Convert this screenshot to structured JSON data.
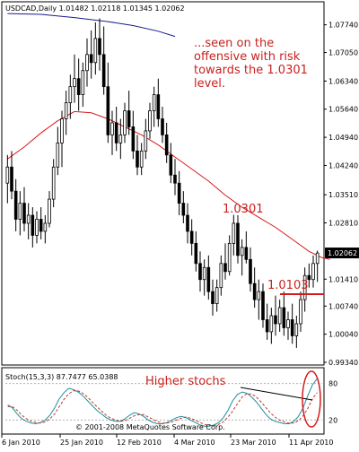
{
  "chart_data": [
    {
      "type": "candlestick",
      "header": "USDCAD,Daily  1.01482 1.02118 1.01345 1.02062",
      "price_axis_labels": [
        "1.07740",
        "1.07050",
        "1.06340",
        "1.05640",
        "1.04940",
        "1.04240",
        "1.03510",
        "1.02810",
        "1.02062",
        "1.01410",
        "1.00740",
        "1.00040",
        "0.99340"
      ],
      "last_price": "1.02062",
      "ylim": [
        0.9934,
        1.08
      ],
      "annotations": {
        "offensive_note": [
          "...seen on the",
          "offensive with risk",
          "towards the 1.0301",
          "level."
        ],
        "level_high": "1.0301",
        "level_low": "1.0103",
        "level_low_value": 1.0103
      },
      "moving_average": [
        [
          0,
          1.044
        ],
        [
          4,
          1.047
        ],
        [
          8,
          1.0505
        ],
        [
          12,
          1.0535
        ],
        [
          16,
          1.0558
        ],
        [
          20,
          1.0555
        ],
        [
          24,
          1.054
        ],
        [
          28,
          1.052
        ],
        [
          32,
          1.05
        ],
        [
          36,
          1.0475
        ],
        [
          40,
          1.0445
        ],
        [
          44,
          1.0415
        ],
        [
          48,
          1.0385
        ],
        [
          52,
          1.035
        ],
        [
          56,
          1.032
        ],
        [
          60,
          1.0295
        ],
        [
          64,
          1.027
        ],
        [
          68,
          1.024
        ],
        [
          72,
          1.021
        ],
        [
          75,
          1.0195
        ],
        [
          77,
          1.019
        ]
      ],
      "upper_moving_average": [
        [
          0,
          1.0802
        ],
        [
          8,
          1.08
        ],
        [
          16,
          1.0792
        ],
        [
          24,
          1.0782
        ],
        [
          30,
          1.0772
        ],
        [
          36,
          1.0758
        ],
        [
          40,
          1.0745
        ]
      ],
      "candles": [
        [
          1.038,
          1.045,
          1.033,
          1.042
        ],
        [
          1.042,
          1.046,
          1.034,
          1.036
        ],
        [
          1.036,
          1.039,
          1.026,
          1.029
        ],
        [
          1.029,
          1.036,
          1.025,
          1.033
        ],
        [
          1.033,
          1.037,
          1.026,
          1.028
        ],
        [
          1.028,
          1.033,
          1.024,
          1.03
        ],
        [
          1.03,
          1.032,
          1.022,
          1.025
        ],
        [
          1.025,
          1.031,
          1.023,
          1.029
        ],
        [
          1.029,
          1.032,
          1.024,
          1.026
        ],
        [
          1.026,
          1.03,
          1.023,
          1.028
        ],
        [
          1.028,
          1.036,
          1.027,
          1.034
        ],
        [
          1.034,
          1.044,
          1.032,
          1.042
        ],
        [
          1.042,
          1.052,
          1.04,
          1.048
        ],
        [
          1.048,
          1.056,
          1.042,
          1.054
        ],
        [
          1.054,
          1.061,
          1.05,
          1.058
        ],
        [
          1.058,
          1.065,
          1.054,
          1.062
        ],
        [
          1.062,
          1.07,
          1.058,
          1.064
        ],
        [
          1.064,
          1.069,
          1.056,
          1.06
        ],
        [
          1.06,
          1.068,
          1.057,
          1.066
        ],
        [
          1.066,
          1.074,
          1.062,
          1.07
        ],
        [
          1.07,
          1.076,
          1.064,
          1.068
        ],
        [
          1.068,
          1.078,
          1.065,
          1.074
        ],
        [
          1.074,
          1.079,
          1.066,
          1.07
        ],
        [
          1.07,
          1.077,
          1.06,
          1.062
        ],
        [
          1.062,
          1.068,
          1.048,
          1.05
        ],
        [
          1.05,
          1.056,
          1.045,
          1.053
        ],
        [
          1.053,
          1.057,
          1.046,
          1.048
        ],
        [
          1.048,
          1.054,
          1.044,
          1.05
        ],
        [
          1.05,
          1.058,
          1.048,
          1.056
        ],
        [
          1.056,
          1.061,
          1.05,
          1.052
        ],
        [
          1.052,
          1.056,
          1.044,
          1.046
        ],
        [
          1.046,
          1.05,
          1.04,
          1.042
        ],
        [
          1.042,
          1.048,
          1.04,
          1.046
        ],
        [
          1.046,
          1.054,
          1.044,
          1.051
        ],
        [
          1.051,
          1.058,
          1.049,
          1.056
        ],
        [
          1.056,
          1.062,
          1.052,
          1.06
        ],
        [
          1.06,
          1.064,
          1.052,
          1.054
        ],
        [
          1.054,
          1.057,
          1.048,
          1.05
        ],
        [
          1.05,
          1.053,
          1.043,
          1.045
        ],
        [
          1.045,
          1.048,
          1.038,
          1.04
        ],
        [
          1.04,
          1.044,
          1.035,
          1.038
        ],
        [
          1.038,
          1.041,
          1.03,
          1.033
        ],
        [
          1.033,
          1.036,
          1.028,
          1.03
        ],
        [
          1.03,
          1.033,
          1.023,
          1.026
        ],
        [
          1.026,
          1.029,
          1.02,
          1.023
        ],
        [
          1.023,
          1.026,
          1.016,
          1.018
        ],
        [
          1.018,
          1.021,
          1.011,
          1.014
        ],
        [
          1.014,
          1.019,
          1.01,
          1.017
        ],
        [
          1.017,
          1.02,
          1.009,
          1.011
        ],
        [
          1.011,
          1.014,
          1.005,
          1.008
        ],
        [
          1.008,
          1.014,
          1.006,
          1.012
        ],
        [
          1.012,
          1.02,
          1.01,
          1.018
        ],
        [
          1.018,
          1.023,
          1.014,
          1.016
        ],
        [
          1.016,
          1.025,
          1.015,
          1.023
        ],
        [
          1.023,
          1.0301,
          1.02,
          1.028
        ],
        [
          1.028,
          1.03,
          1.018,
          1.02
        ],
        [
          1.02,
          1.024,
          1.015,
          1.022
        ],
        [
          1.022,
          1.026,
          1.018,
          1.019
        ],
        [
          1.019,
          1.022,
          1.011,
          1.013
        ],
        [
          1.013,
          1.017,
          1.007,
          1.009
        ],
        [
          1.009,
          1.014,
          1.004,
          1.011
        ],
        [
          1.011,
          1.013,
          1.002,
          1.004
        ],
        [
          1.004,
          1.008,
          0.999,
          1.001
        ],
        [
          1.001,
          1.007,
          0.998,
          1.005
        ],
        [
          1.005,
          1.01,
          1.0,
          1.003
        ],
        [
          1.003,
          1.009,
          1.001,
          1.007
        ],
        [
          1.007,
          1.011,
          1.0,
          1.002
        ],
        [
          1.002,
          1.006,
          0.999,
          1.004
        ],
        [
          1.004,
          1.008,
          0.998,
          1.0
        ],
        [
          1.0,
          1.005,
          0.997,
          1.003
        ],
        [
          1.003,
          1.011,
          1.001,
          1.009
        ],
        [
          1.009,
          1.017,
          1.006,
          1.015
        ],
        [
          1.015,
          1.018,
          1.012,
          1.014
        ],
        [
          1.014,
          1.02,
          1.012,
          1.018
        ],
        [
          1.018,
          1.0212,
          1.0134,
          1.0206
        ]
      ],
      "date_labels": [
        "6 Jan 2010",
        "25 Jan 2010",
        "12 Feb 2010",
        "4 Mar 2010",
        "23 Mar 2010",
        "11 Apr 2010"
      ],
      "colors": {
        "ma": "#d61a1a",
        "upper_ma": "#1a1a8a",
        "bars": "#000000",
        "level": "#d61a1a",
        "annotation": "#c8211e"
      }
    },
    {
      "type": "line",
      "header": "Stoch(15,3,3) 87.7477 65.0388",
      "ylim": [
        0,
        100
      ],
      "levels": [
        20,
        80
      ],
      "level_labels": [
        "80",
        "20"
      ],
      "annotation": "Higher stochs",
      "copyright": "© 2001-2008 MetaQuotes Software Corp.",
      "series": [
        {
          "values": [
            45,
            40,
            30,
            22,
            18,
            15,
            14,
            16,
            20,
            28,
            40,
            55,
            65,
            72,
            70,
            66,
            60,
            52,
            44,
            36,
            30,
            24,
            20,
            18,
            18,
            22,
            28,
            32,
            30,
            26,
            20,
            16,
            14,
            14,
            16,
            20,
            24,
            26,
            24,
            20,
            16,
            12,
            10,
            10,
            12,
            16,
            24,
            36,
            52,
            62,
            66,
            64,
            58,
            50,
            40,
            30,
            22,
            18,
            16,
            14,
            14,
            18,
            26,
            40,
            60,
            78,
            88
          ],
          "color": "#1a8fa0"
        },
        {
          "values": [
            42,
            42,
            36,
            28,
            22,
            18,
            16,
            15,
            17,
            22,
            30,
            42,
            54,
            63,
            68,
            68,
            64,
            58,
            50,
            42,
            35,
            28,
            23,
            20,
            18,
            19,
            23,
            27,
            29,
            29,
            25,
            21,
            17,
            15,
            15,
            17,
            20,
            23,
            25,
            23,
            20,
            16,
            13,
            11,
            11,
            13,
            17,
            25,
            35,
            47,
            58,
            63,
            63,
            58,
            50,
            41,
            32,
            25,
            20,
            17,
            15,
            15,
            19,
            27,
            39,
            55,
            65
          ],
          "color": "#c0392b"
        }
      ]
    }
  ]
}
